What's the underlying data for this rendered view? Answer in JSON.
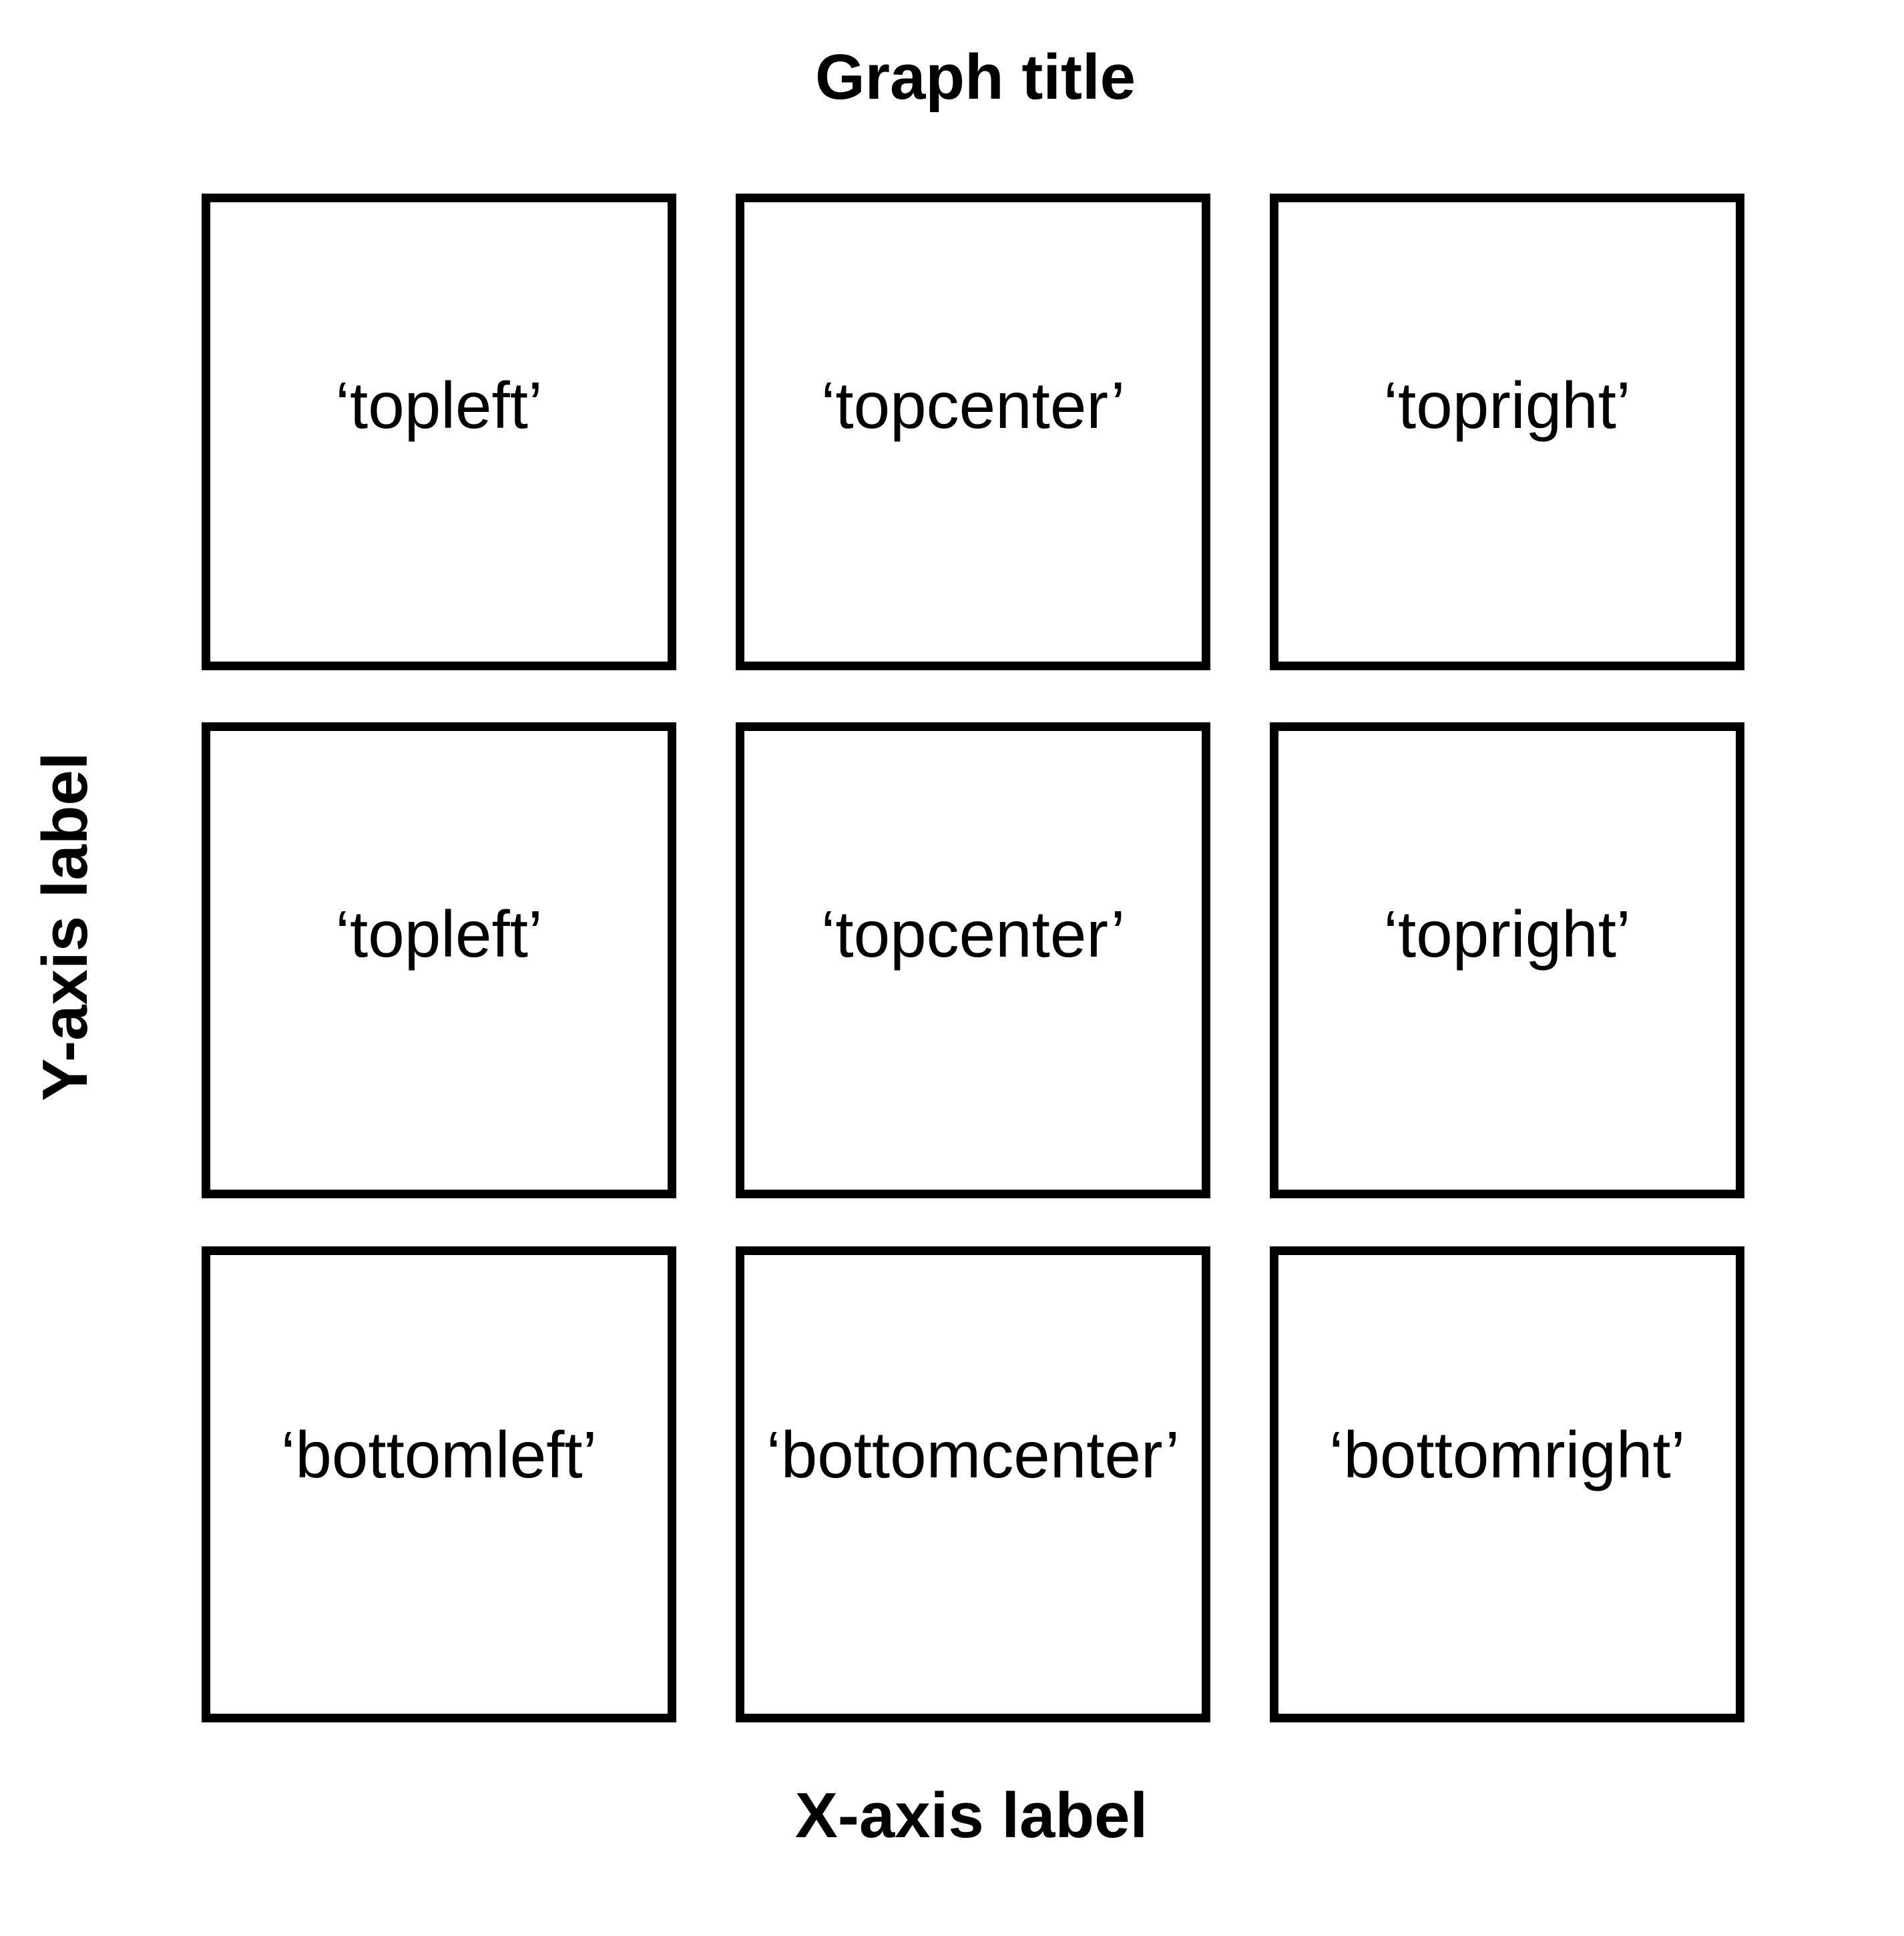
{
  "title": "Graph title",
  "xlabel": "X-axis label",
  "ylabel": "Y-axis label",
  "grid": [
    [
      "‘topleft’",
      "‘topcenter’",
      "‘topright’"
    ],
    [
      "‘topleft’",
      "‘topcenter’",
      "‘topright’"
    ],
    [
      "‘bottomleft’",
      "‘bottomcenter’",
      "‘bottomright’"
    ]
  ]
}
